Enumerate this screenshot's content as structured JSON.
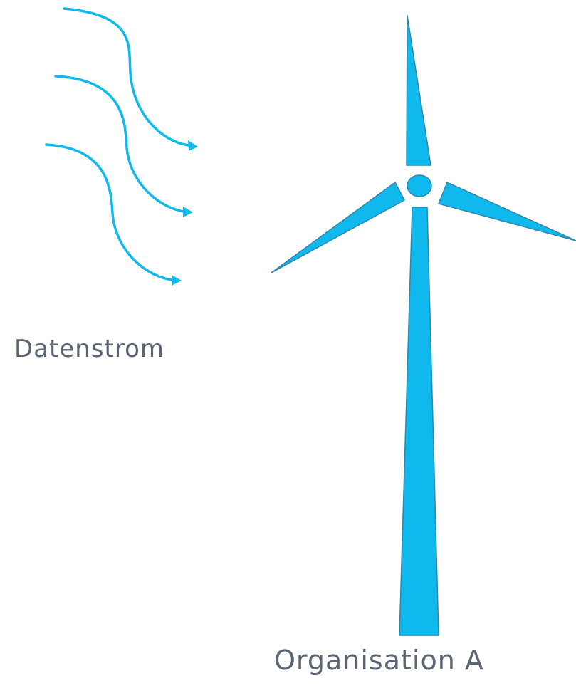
{
  "labels": {
    "data_stream": "Datenstrom",
    "organisation": "Organisation A"
  },
  "colors": {
    "accent": "#0fb9ee",
    "outline": "#2f86a8",
    "text": "#5a6473",
    "background": "#ffffff"
  },
  "icons": {
    "flow": "wavy-arrow",
    "turbine": "wind-turbine"
  }
}
